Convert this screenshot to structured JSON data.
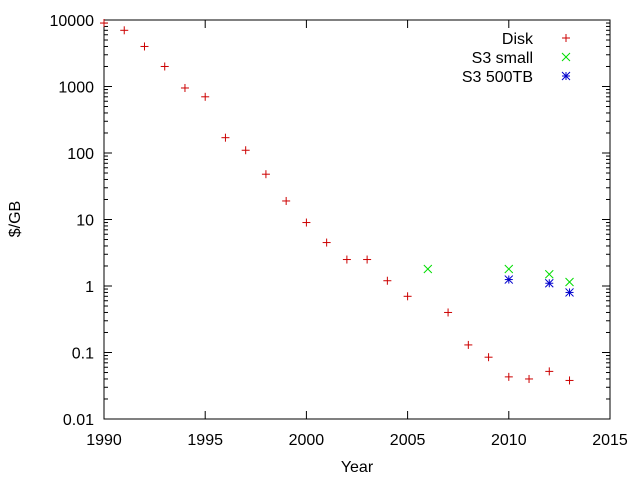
{
  "chart_data": {
    "type": "scatter",
    "title": "",
    "xlabel": "Year",
    "ylabel": "$/GB",
    "xlim": [
      1990,
      2015
    ],
    "ylim": [
      0.01,
      10000
    ],
    "yscale": "log",
    "grid": false,
    "legend_position": "top-right",
    "x_ticks": [
      {
        "value": 1990,
        "label": "1990"
      },
      {
        "value": 1995,
        "label": "1995"
      },
      {
        "value": 2000,
        "label": "2000"
      },
      {
        "value": 2005,
        "label": "2005"
      },
      {
        "value": 2010,
        "label": "2010"
      },
      {
        "value": 2015,
        "label": "2015"
      }
    ],
    "y_ticks": [
      {
        "value": 0.01,
        "label": "0.01"
      },
      {
        "value": 0.1,
        "label": "0.1"
      },
      {
        "value": 1,
        "label": "1"
      },
      {
        "value": 10,
        "label": "10"
      },
      {
        "value": 100,
        "label": "100"
      },
      {
        "value": 1000,
        "label": "1000"
      },
      {
        "value": 10000,
        "label": "10000"
      }
    ],
    "series": [
      {
        "name": "Disk",
        "marker": "plus",
        "color": "#cc0000",
        "points": [
          {
            "x": 1990,
            "y": 9000
          },
          {
            "x": 1991,
            "y": 7000
          },
          {
            "x": 1992,
            "y": 4000
          },
          {
            "x": 1993,
            "y": 2000
          },
          {
            "x": 1994,
            "y": 950
          },
          {
            "x": 1995,
            "y": 700
          },
          {
            "x": 1996,
            "y": 170
          },
          {
            "x": 1997,
            "y": 110
          },
          {
            "x": 1998,
            "y": 48
          },
          {
            "x": 1999,
            "y": 19
          },
          {
            "x": 2000,
            "y": 9
          },
          {
            "x": 2001,
            "y": 4.5
          },
          {
            "x": 2002,
            "y": 2.5
          },
          {
            "x": 2003,
            "y": 2.5
          },
          {
            "x": 2004,
            "y": 1.2
          },
          {
            "x": 2005,
            "y": 0.7
          },
          {
            "x": 2007,
            "y": 0.4
          },
          {
            "x": 2008,
            "y": 0.13
          },
          {
            "x": 2009,
            "y": 0.085
          },
          {
            "x": 2010,
            "y": 0.043
          },
          {
            "x": 2011,
            "y": 0.04
          },
          {
            "x": 2012,
            "y": 0.052
          },
          {
            "x": 2013,
            "y": 0.038
          }
        ]
      },
      {
        "name": "S3 small",
        "marker": "cross",
        "color": "#00dd00",
        "points": [
          {
            "x": 2006,
            "y": 1.8
          },
          {
            "x": 2010,
            "y": 1.8
          },
          {
            "x": 2012,
            "y": 1.5
          },
          {
            "x": 2013,
            "y": 1.15
          }
        ]
      },
      {
        "name": "S3 500TB",
        "marker": "star",
        "color": "#0000cc",
        "points": [
          {
            "x": 2010,
            "y": 1.25
          },
          {
            "x": 2012,
            "y": 1.1
          },
          {
            "x": 2013,
            "y": 0.8
          }
        ]
      }
    ]
  }
}
